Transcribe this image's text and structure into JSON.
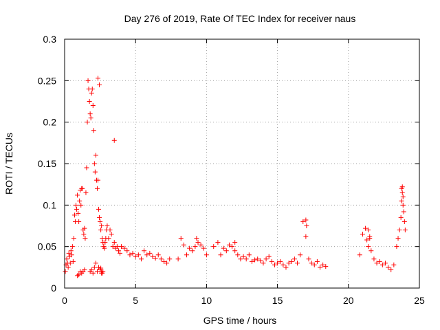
{
  "colors": {
    "series": "#ff0000",
    "axis": "#000000",
    "grid": "#a0a0a0",
    "background": "#ffffff"
  },
  "chart_data": {
    "type": "scatter",
    "title": "Day 276 of 2019, Rate Of TEC Index for receiver naus",
    "xlabel": "GPS time / hours",
    "ylabel": "ROTI / TECUs",
    "xlim": [
      0,
      25
    ],
    "ylim": [
      0,
      0.3
    ],
    "xticks": [
      0,
      5,
      10,
      15,
      20,
      25
    ],
    "xtick_labels": [
      "0",
      "5",
      "10",
      "15",
      "20",
      "25"
    ],
    "yticks": [
      0,
      0.05,
      0.1,
      0.15,
      0.2,
      0.25,
      0.3
    ],
    "ytick_labels": [
      "0",
      "0.05",
      "0.1",
      "0.15",
      "0.2",
      "0.25",
      "0.3"
    ],
    "grid": true,
    "marker": "+",
    "series": [
      {
        "name": "ROTI",
        "x": [
          0.05,
          0.1,
          0.15,
          0.2,
          0.25,
          0.3,
          0.35,
          0.4,
          0.45,
          0.5,
          0.55,
          0.6,
          0.65,
          0.7,
          0.75,
          0.8,
          0.85,
          0.9,
          0.95,
          1.0,
          1.05,
          1.1,
          1.15,
          1.2,
          1.25,
          1.3,
          1.35,
          1.4,
          1.45,
          1.5,
          1.55,
          1.6,
          1.65,
          1.7,
          1.75,
          1.8,
          1.85,
          1.9,
          1.95,
          2.0,
          2.05,
          2.1,
          2.15,
          2.2,
          2.25,
          2.3,
          2.35,
          2.4,
          2.45,
          2.5,
          2.55,
          2.6,
          2.65,
          2.7,
          2.75,
          2.8,
          2.85,
          2.9,
          2.95,
          3.0,
          3.1,
          3.2,
          3.3,
          3.4,
          3.5,
          3.6,
          3.7,
          3.8,
          3.9,
          4.0,
          4.2,
          4.4,
          4.6,
          4.8,
          5.0,
          5.2,
          5.4,
          5.6,
          5.8,
          6.0,
          6.2,
          6.4,
          6.6,
          6.8,
          7.0,
          7.2,
          7.4,
          8.0,
          8.2,
          8.4,
          8.6,
          8.8,
          9.0,
          9.2,
          9.4,
          9.6,
          9.8,
          10.0,
          10.5,
          10.8,
          11.0,
          11.2,
          11.4,
          11.6,
          11.8,
          12.0,
          12.2,
          12.4,
          12.6,
          12.8,
          13.0,
          13.2,
          13.4,
          13.6,
          13.8,
          14.0,
          14.2,
          14.4,
          14.6,
          14.8,
          15.0,
          15.2,
          15.4,
          15.6,
          15.8,
          16.0,
          16.2,
          16.4,
          16.6,
          16.8,
          17.0,
          17.2,
          17.4,
          17.6,
          17.8,
          18.0,
          18.2,
          18.4,
          20.8,
          21.0,
          21.2,
          21.3,
          21.4,
          21.5,
          21.6,
          21.8,
          22.0,
          22.2,
          22.4,
          22.6,
          22.8,
          23.0,
          23.2,
          23.4,
          23.5,
          23.6,
          23.7,
          23.75,
          23.8,
          23.85,
          23.9,
          23.95,
          24.0,
          1.8,
          1.9,
          2.0,
          2.1,
          2.2,
          2.3,
          2.4,
          2.5,
          2.6,
          2.7,
          3.5,
          1.2,
          1.3,
          1.4,
          2.55,
          2.6,
          2.65,
          0.9,
          1.0,
          1.1,
          2.35,
          2.45,
          23.8,
          23.85,
          23.75,
          17.0,
          17.05,
          21.4,
          21.5,
          12.0,
          9.3
        ],
        "y": [
          0.02,
          0.028,
          0.035,
          0.03,
          0.025,
          0.042,
          0.038,
          0.03,
          0.045,
          0.04,
          0.05,
          0.032,
          0.06,
          0.088,
          0.08,
          0.1,
          0.095,
          0.112,
          0.09,
          0.08,
          0.105,
          0.118,
          0.1,
          0.12,
          0.12,
          0.07,
          0.065,
          0.072,
          0.06,
          0.115,
          0.145,
          0.2,
          0.25,
          0.24,
          0.225,
          0.21,
          0.205,
          0.235,
          0.24,
          0.22,
          0.19,
          0.15,
          0.14,
          0.16,
          0.13,
          0.12,
          0.13,
          0.095,
          0.085,
          0.08,
          0.07,
          0.075,
          0.06,
          0.055,
          0.05,
          0.048,
          0.055,
          0.06,
          0.07,
          0.075,
          0.06,
          0.07,
          0.065,
          0.05,
          0.055,
          0.048,
          0.05,
          0.045,
          0.042,
          0.05,
          0.048,
          0.045,
          0.04,
          0.042,
          0.038,
          0.04,
          0.035,
          0.045,
          0.04,
          0.042,
          0.038,
          0.036,
          0.04,
          0.035,
          0.032,
          0.03,
          0.035,
          0.035,
          0.06,
          0.052,
          0.04,
          0.048,
          0.045,
          0.05,
          0.055,
          0.052,
          0.048,
          0.04,
          0.05,
          0.055,
          0.04,
          0.048,
          0.045,
          0.052,
          0.05,
          0.055,
          0.04,
          0.035,
          0.038,
          0.035,
          0.04,
          0.032,
          0.034,
          0.035,
          0.033,
          0.03,
          0.035,
          0.038,
          0.032,
          0.028,
          0.03,
          0.032,
          0.028,
          0.025,
          0.03,
          0.032,
          0.035,
          0.03,
          0.04,
          0.08,
          0.062,
          0.035,
          0.03,
          0.028,
          0.032,
          0.025,
          0.028,
          0.026,
          0.04,
          0.065,
          0.072,
          0.058,
          0.05,
          0.06,
          0.045,
          0.035,
          0.03,
          0.032,
          0.028,
          0.03,
          0.025,
          0.022,
          0.028,
          0.05,
          0.06,
          0.07,
          0.085,
          0.12,
          0.115,
          0.1,
          0.092,
          0.08,
          0.07,
          0.02,
          0.022,
          0.018,
          0.025,
          0.03,
          0.02,
          0.025,
          0.022,
          0.018,
          0.02,
          0.178,
          0.018,
          0.02,
          0.022,
          0.024,
          0.02,
          0.018,
          0.015,
          0.016,
          0.02,
          0.253,
          0.245,
          0.122,
          0.11,
          0.105,
          0.082,
          0.075,
          0.07,
          0.062,
          0.045,
          0.06
        ]
      }
    ]
  }
}
